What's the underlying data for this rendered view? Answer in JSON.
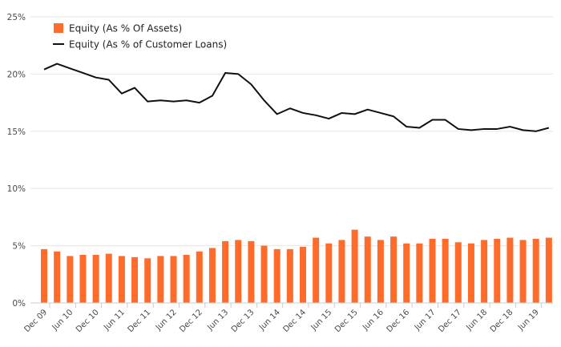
{
  "chart_data": {
    "type": "bar+line",
    "ylim": [
      0,
      25
    ],
    "yticks": [
      "0%",
      "5%",
      "10%",
      "15%",
      "20%",
      "25%"
    ],
    "ytick_values": [
      0,
      5,
      10,
      15,
      20,
      25
    ],
    "grid": true,
    "legend_position": "top-left",
    "categories": [
      "Dec 09",
      "Mar 10",
      "Jun 10",
      "Sep 10",
      "Dec 10",
      "Mar 11",
      "Jun 11",
      "Sep 11",
      "Dec 11",
      "Mar 12",
      "Jun 12",
      "Sep 12",
      "Dec 12",
      "Mar 13",
      "Jun 13",
      "Sep 13",
      "Dec 13",
      "Mar 14",
      "Jun 14",
      "Sep 14",
      "Dec 14",
      "Mar 15",
      "Jun 15",
      "Sep 15",
      "Dec 15",
      "Mar 16",
      "Jun 16",
      "Sep 16",
      "Dec 16",
      "Mar 17",
      "Jun 17",
      "Sep 17",
      "Dec 17",
      "Mar 18",
      "Jun 18",
      "Sep 18",
      "Dec 18",
      "Mar 19",
      "Jun 19",
      "Sep 19"
    ],
    "x_labels": [
      "Dec 09",
      "Jun 10",
      "Dec 10",
      "Jun 11",
      "Dec 11",
      "Jun 12",
      "Dec 12",
      "Jun 13",
      "Dec 13",
      "Jun 14",
      "Dec 14",
      "Jun 15",
      "Dec 15",
      "Jun 16",
      "Dec 16",
      "Jun 17",
      "Dec 17",
      "Jun 18",
      "Dec 18",
      "Jun 19"
    ],
    "series": [
      {
        "name": "Equity (As % Of Assets)",
        "kind": "bar",
        "color": "#ff6b2b",
        "values": [
          4.7,
          4.5,
          4.1,
          4.2,
          4.2,
          4.3,
          4.1,
          4.0,
          3.9,
          4.1,
          4.1,
          4.2,
          4.5,
          4.8,
          5.4,
          5.5,
          5.4,
          5.0,
          4.7,
          4.7,
          4.9,
          5.7,
          5.2,
          5.5,
          6.4,
          5.8,
          5.5,
          5.8,
          5.2,
          5.2,
          5.6,
          5.6,
          5.3,
          5.2,
          5.5,
          5.6,
          5.7,
          5.5,
          5.6,
          5.7
        ]
      },
      {
        "name": "Equity (As % of Customer Loans)",
        "kind": "line",
        "color": "#111111",
        "values": [
          20.4,
          20.9,
          20.5,
          20.1,
          19.7,
          19.5,
          18.3,
          18.8,
          17.6,
          17.7,
          17.6,
          17.7,
          17.5,
          18.1,
          20.1,
          20.0,
          19.1,
          17.7,
          16.5,
          17.0,
          16.6,
          16.4,
          16.1,
          16.6,
          16.5,
          16.9,
          16.6,
          16.3,
          15.4,
          15.3,
          16.0,
          16.0,
          15.2,
          15.1,
          15.2,
          15.2,
          15.4,
          15.1,
          15.0,
          15.3
        ]
      }
    ]
  },
  "colors": {
    "bar": "#ff6b2b",
    "line": "#111111",
    "grid": "#e6e6e6",
    "axis": "#cccccc"
  }
}
